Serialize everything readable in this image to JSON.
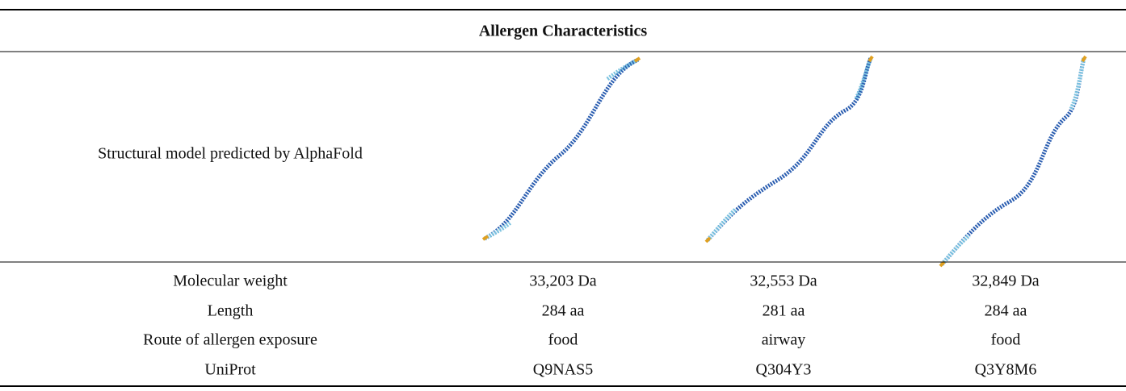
{
  "table": {
    "title": "Allergen Characteristics",
    "structure_label": "Structural model predicted by AlphaFold",
    "rows": [
      [
        "Molecular weight",
        "33,203 Da",
        "32,553 Da",
        "32,849 Da"
      ],
      [
        "Length",
        "284 aa",
        "281 aa",
        "284 aa"
      ],
      [
        "Route of allergen exposure",
        "food",
        "airway",
        "food"
      ],
      [
        "UniProt",
        "Q9NAS5",
        "Q304Y3",
        "Q3Y8M6"
      ]
    ]
  }
}
